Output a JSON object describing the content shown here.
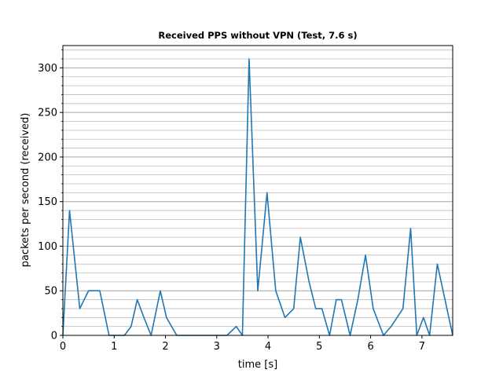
{
  "chart_data": {
    "type": "line",
    "title": "Received PPS without VPN (Test, 7.6 s)",
    "xlabel": "time [s]",
    "ylabel": "packets per second (received)",
    "xlim": [
      0,
      7.6
    ],
    "ylim": [
      0,
      325
    ],
    "x_ticks": [
      0,
      1,
      2,
      3,
      4,
      5,
      6,
      7
    ],
    "y_ticks": [
      0,
      50,
      100,
      150,
      200,
      250,
      300
    ],
    "grid": "horizontal minor and major gridlines",
    "line_color": "#1f77b4",
    "series": [
      {
        "x": [
          0.0,
          0.13,
          0.33,
          0.5,
          0.72,
          0.9,
          1.0,
          1.2,
          1.33,
          1.45,
          1.58,
          1.72,
          1.9,
          2.02,
          2.22,
          2.5,
          2.8,
          3.0,
          3.2,
          3.38,
          3.5,
          3.63,
          3.8,
          3.98,
          4.15,
          4.33,
          4.5,
          4.63,
          4.8,
          4.93,
          5.05,
          5.2,
          5.33,
          5.43,
          5.6,
          5.75,
          5.9,
          6.05,
          6.25,
          6.4,
          6.63,
          6.78,
          6.9,
          7.03,
          7.15,
          7.3,
          7.45,
          7.6
        ],
        "y": [
          0,
          140,
          30,
          50,
          50,
          0,
          0,
          0,
          10,
          40,
          20,
          0,
          50,
          20,
          0,
          0,
          0,
          0,
          0,
          10,
          0,
          310,
          50,
          160,
          50,
          20,
          30,
          110,
          60,
          30,
          30,
          0,
          40,
          40,
          0,
          40,
          90,
          30,
          0,
          10,
          30,
          120,
          0,
          20,
          0,
          80,
          40,
          0
        ]
      }
    ]
  }
}
